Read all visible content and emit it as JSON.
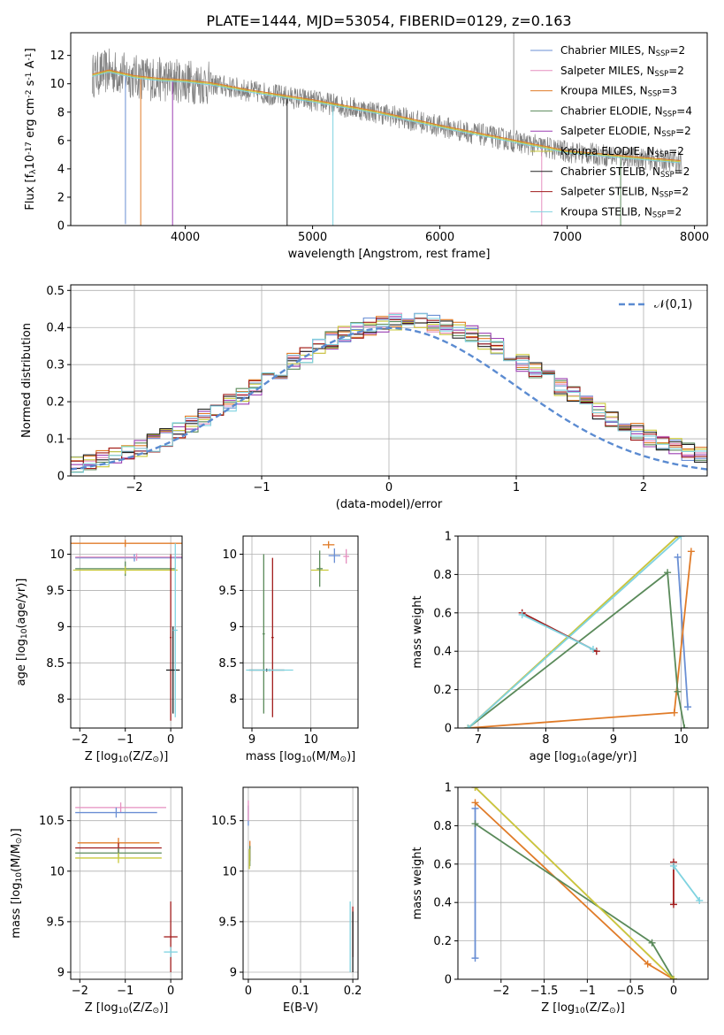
{
  "title": "PLATE=1444, MJD=53054, FIBERID=0129, z=0.163",
  "colors": {
    "series": [
      "#6a8fd4",
      "#e58fbf",
      "#e07b28",
      "#5a8a5a",
      "#9b3fb2",
      "#c9c93a",
      "#222222",
      "#a11c1c",
      "#7fd3e0"
    ],
    "data": "#808080",
    "gaussian": "#5b8bd1"
  },
  "legend_labels": [
    "Chabrier MILES, N$_{SSP}$=2",
    "Salpeter MILES, N$_{SSP}$=2",
    "Kroupa MILES, N$_{SSP}$=3",
    "Chabrier ELODIE, N$_{SSP}$=4",
    "Salpeter ELODIE, N$_{SSP}$=2",
    "Kroupa ELODIE, N$_{SSP}$=2",
    "Chabrier STELIB, N$_{SSP}$=2",
    "Salpeter STELIB, N$_{SSP}$=2",
    "Kroupa STELIB, N$_{SSP}$=2"
  ],
  "chart_data": [
    {
      "id": "spectrum",
      "type": "line",
      "xlabel": "wavelength [Angstrom, rest frame]",
      "ylabel": "Flux [f$_\\lambda$10$^{-17}$ erg cm$^{-2}$ s$^{-1}$ A$^{-1}$]",
      "xlim": [
        3100,
        8100
      ],
      "ylim": [
        0,
        13.6
      ],
      "xticks": [
        4000,
        5000,
        6000,
        7000,
        8000
      ],
      "yticks": [
        0,
        2,
        4,
        6,
        8,
        10,
        12
      ],
      "grid": false,
      "legend": "upper right",
      "continuum": [
        [
          3270,
          10.6
        ],
        [
          3400,
          10.9
        ],
        [
          3600,
          10.5
        ],
        [
          3800,
          10.3
        ],
        [
          4000,
          10.2
        ],
        [
          4200,
          10.0
        ],
        [
          4500,
          9.5
        ],
        [
          5000,
          8.8
        ],
        [
          5500,
          8.0
        ],
        [
          6000,
          7.0
        ],
        [
          6500,
          6.1
        ],
        [
          7000,
          5.2
        ],
        [
          7500,
          4.8
        ],
        [
          7900,
          4.5
        ]
      ]
    },
    {
      "id": "residuals",
      "type": "step",
      "xlabel": "(data-model)/error",
      "ylabel": "Normed distribution",
      "xlim": [
        -2.5,
        2.5
      ],
      "ylim": [
        0,
        0.515
      ],
      "xticks": [
        -2,
        -1,
        0,
        1,
        2
      ],
      "yticks": [
        0.0,
        0.1,
        0.2,
        0.3,
        0.4,
        0.5
      ],
      "grid": true,
      "legend": "upper right",
      "gaussian_label": "$\\mathcal{N}(0,1)$",
      "bin_width": 0.1
    },
    {
      "id": "age-vs-Z",
      "type": "errorbar",
      "xlabel": "Z [log$_{10}$($Z/Z_\\odot$)]",
      "ylabel": "age  [log$_{10}$($age/yr$)]",
      "xlim": [
        -2.2,
        0.25
      ],
      "ylim": [
        7.6,
        10.25
      ],
      "xticks": [
        -2,
        -1,
        0
      ],
      "yticks": [
        8.0,
        8.5,
        9.0,
        9.5,
        10.0
      ],
      "grid": true,
      "points": [
        {
          "s": 0,
          "x": -0.8,
          "y": 9.95,
          "xerr": 1.3,
          "yerr": 0.05
        },
        {
          "s": 1,
          "x": -0.75,
          "y": 9.96,
          "xerr": 1.35,
          "yerr": 0.05
        },
        {
          "s": 2,
          "x": -1.0,
          "y": 10.15,
          "xerr": 1.3,
          "yerr": 0.05
        },
        {
          "s": 3,
          "x": -1.0,
          "y": 9.8,
          "xerr": 1.1,
          "yerr": 0.1
        },
        {
          "s": 5,
          "x": -1.0,
          "y": 9.78,
          "xerr": 1.15,
          "yerr": 0.05
        },
        {
          "s": 7,
          "x": 0.0,
          "y": 8.85,
          "xerr": 0.02,
          "yerr": 1.15
        },
        {
          "s": 6,
          "x": 0.05,
          "y": 8.4,
          "xerr": 0.15,
          "yerr": 0.6
        },
        {
          "s": 8,
          "x": 0.1,
          "y": 8.95,
          "xerr": 0.05,
          "yerr": 1.2
        }
      ]
    },
    {
      "id": "age-vs-mass",
      "type": "errorbar",
      "xlabel": "mass [log$_{10}$($M/M_\\odot$)]",
      "ylabel": "",
      "xlim": [
        8.85,
        10.8
      ],
      "ylim": [
        7.6,
        10.25
      ],
      "xticks": [
        9,
        10
      ],
      "yticks": [
        8.0,
        8.5,
        9.0,
        9.5,
        10.0
      ],
      "grid": true,
      "points": [
        {
          "s": 0,
          "x": 10.4,
          "y": 9.98,
          "xerr": 0.1,
          "yerr": 0.1
        },
        {
          "s": 1,
          "x": 10.6,
          "y": 9.97,
          "xerr": 0.05,
          "yerr": 0.1
        },
        {
          "s": 2,
          "x": 10.3,
          "y": 10.13,
          "xerr": 0.1,
          "yerr": 0.05
        },
        {
          "s": 5,
          "x": 10.15,
          "y": 9.78,
          "xerr": 0.15,
          "yerr": 0.05
        },
        {
          "s": 3,
          "x": 10.15,
          "y": 9.8,
          "xerr": 0.05,
          "yerr": 0.25
        },
        {
          "s": 6,
          "x": 9.25,
          "y": 8.4,
          "xerr": 0.3,
          "yerr": 0.02
        },
        {
          "s": 3,
          "x": 9.2,
          "y": 8.9,
          "xerr": 0.02,
          "yerr": 1.1
        },
        {
          "s": 7,
          "x": 9.35,
          "y": 8.85,
          "xerr": 0.02,
          "yerr": 1.1
        },
        {
          "s": 8,
          "x": 9.3,
          "y": 8.4,
          "xerr": 0.4,
          "yerr": 0.02
        }
      ]
    },
    {
      "id": "weight-vs-age",
      "type": "line",
      "xlabel": "age  [log$_{10}$($age/yr$)]",
      "ylabel": "mass weight",
      "xlim": [
        6.7,
        10.4
      ],
      "ylim": [
        0,
        1.0
      ],
      "xticks": [
        7,
        8,
        9,
        10
      ],
      "yticks": [
        0.0,
        0.2,
        0.4,
        0.6,
        0.8,
        1.0
      ],
      "grid": true,
      "series": [
        {
          "s": 0,
          "x": [
            9.95,
            10.1
          ],
          "y": [
            0.89,
            0.11
          ]
        },
        {
          "s": 1,
          "x": [
            6.85,
            9.95
          ],
          "y": [
            0.0,
            1.0
          ]
        },
        {
          "s": 2,
          "x": [
            6.85,
            9.9,
            10.15
          ],
          "y": [
            0.0,
            0.08,
            0.92
          ]
        },
        {
          "s": 3,
          "x": [
            6.85,
            9.8,
            9.95,
            10.05
          ],
          "y": [
            0.0,
            0.81,
            0.19,
            0.0
          ]
        },
        {
          "s": 5,
          "x": [
            6.85,
            9.95
          ],
          "y": [
            0.0,
            1.0
          ]
        },
        {
          "s": 8,
          "x": [
            6.85,
            10.0
          ],
          "y": [
            0.0,
            1.0
          ]
        },
        {
          "s": 7,
          "x": [
            7.65,
            8.75
          ],
          "y": [
            0.6,
            0.4
          ]
        },
        {
          "s": 8,
          "x": [
            7.65,
            8.7
          ],
          "y": [
            0.59,
            0.41
          ]
        }
      ]
    },
    {
      "id": "mass-vs-Z",
      "type": "errorbar",
      "xlabel": "Z [log$_{10}$($Z/Z_\\odot$)]",
      "ylabel": "mass [log$_{10}$($M/M_\\odot$)]",
      "xlim": [
        -2.2,
        0.25
      ],
      "ylim": [
        8.93,
        10.83
      ],
      "xticks": [
        -2,
        -1,
        0
      ],
      "yticks": [
        9.0,
        9.5,
        10.0,
        10.5
      ],
      "grid": true,
      "points": [
        {
          "s": 1,
          "x": -1.1,
          "y": 10.63,
          "xerr": 1.0,
          "yerr": 0.05
        },
        {
          "s": 0,
          "x": -1.2,
          "y": 10.58,
          "xerr": 0.9,
          "yerr": 0.05
        },
        {
          "s": 2,
          "x": -1.15,
          "y": 10.28,
          "xerr": 0.9,
          "yerr": 0.05
        },
        {
          "s": 7,
          "x": -1.15,
          "y": 10.23,
          "xerr": 0.95,
          "yerr": 0.05
        },
        {
          "s": 3,
          "x": -1.15,
          "y": 10.18,
          "xerr": 0.95,
          "yerr": 0.05
        },
        {
          "s": 5,
          "x": -1.15,
          "y": 10.13,
          "xerr": 0.95,
          "yerr": 0.05
        },
        {
          "s": 7,
          "x": 0.0,
          "y": 9.35,
          "xerr": 0.15,
          "yerr": 0.35
        },
        {
          "s": 8,
          "x": 0.0,
          "y": 9.2,
          "xerr": 0.15,
          "yerr": 0.05
        }
      ]
    },
    {
      "id": "mass-vs-ebv",
      "type": "errorbar",
      "xlabel": "E(B-V)",
      "ylabel": "",
      "xlim": [
        -0.01,
        0.21
      ],
      "ylim": [
        8.93,
        10.83
      ],
      "xticks": [
        0.0,
        0.1,
        0.2
      ],
      "yticks": [
        9.0,
        9.5,
        10.0,
        10.5
      ],
      "grid": true,
      "points": [
        {
          "s": 0,
          "x": 0.0,
          "y": 10.55,
          "xerr": 0.0,
          "yerr": 0.1
        },
        {
          "s": 1,
          "x": 0.0,
          "y": 10.6,
          "xerr": 0.0,
          "yerr": 0.1
        },
        {
          "s": 2,
          "x": 0.003,
          "y": 10.2,
          "xerr": 0.0,
          "yerr": 0.1
        },
        {
          "s": 3,
          "x": 0.003,
          "y": 10.15,
          "xerr": 0.0,
          "yerr": 0.1
        },
        {
          "s": 5,
          "x": 0.002,
          "y": 10.12,
          "xerr": 0.0,
          "yerr": 0.1
        },
        {
          "s": 8,
          "x": 0.195,
          "y": 9.35,
          "xerr": 0.0,
          "yerr": 0.35
        },
        {
          "s": 7,
          "x": 0.2,
          "y": 9.4,
          "xerr": 0.0,
          "yerr": 0.25
        },
        {
          "s": 6,
          "x": 0.2,
          "y": 9.3,
          "xerr": 0.0,
          "yerr": 0.3
        }
      ]
    },
    {
      "id": "weight-vs-Z",
      "type": "line",
      "xlabel": "Z [log$_{10}$($Z/Z_\\odot$)]",
      "ylabel": "mass weight",
      "xlim": [
        -2.5,
        0.4
      ],
      "ylim": [
        0,
        1.0
      ],
      "xticks": [
        -2.0,
        -1.5,
        -1.0,
        -0.5,
        0.0
      ],
      "yticks": [
        0.0,
        0.2,
        0.4,
        0.6,
        0.8,
        1.0
      ],
      "grid": true,
      "series": [
        {
          "s": 0,
          "x": [
            -2.3,
            -2.3
          ],
          "y": [
            0.89,
            0.11
          ]
        },
        {
          "s": 1,
          "x": [
            -2.3,
            0.0
          ],
          "y": [
            1.0,
            0.0
          ]
        },
        {
          "s": 2,
          "x": [
            -2.3,
            -0.3,
            0.0
          ],
          "y": [
            0.92,
            0.08,
            0.0
          ]
        },
        {
          "s": 3,
          "x": [
            -2.3,
            -0.25,
            0.0
          ],
          "y": [
            0.81,
            0.19,
            0.0
          ]
        },
        {
          "s": 5,
          "x": [
            -2.3,
            0.0
          ],
          "y": [
            1.0,
            0.0
          ]
        },
        {
          "s": 7,
          "x": [
            0.0,
            0.0
          ],
          "y": [
            0.61,
            0.39
          ]
        },
        {
          "s": 8,
          "x": [
            0.0,
            0.3
          ],
          "y": [
            0.59,
            0.41
          ]
        }
      ]
    }
  ]
}
